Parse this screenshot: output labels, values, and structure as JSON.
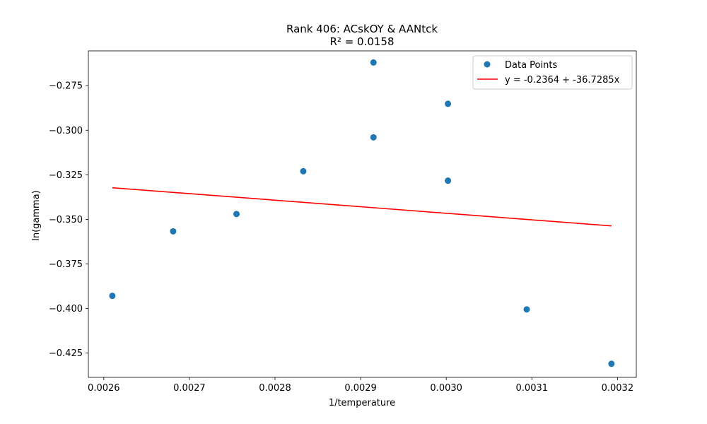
{
  "chart_data": {
    "type": "scatter",
    "title": "Rank 406: ACskOY & AANtck",
    "subtitle": "R² = 0.0158",
    "xlabel": "1/temperature",
    "ylabel": "ln(gamma)",
    "xlim": [
      0.002582,
      0.003222
    ],
    "ylim": [
      -0.43862,
      -0.2555
    ],
    "xticks": [
      0.0026,
      0.0027,
      0.0028,
      0.0029,
      0.003,
      0.0031,
      0.0032
    ],
    "xtick_labels": [
      "0.0026",
      "0.0027",
      "0.0028",
      "0.0029",
      "0.0030",
      "0.0031",
      "0.0032"
    ],
    "yticks": [
      -0.425,
      -0.4,
      -0.375,
      -0.35,
      -0.325,
      -0.3,
      -0.275
    ],
    "ytick_labels": [
      "−0.425",
      "−0.400",
      "−0.375",
      "−0.350",
      "−0.325",
      "−0.300",
      "−0.275"
    ],
    "grid": false,
    "legend_position": "top-right",
    "series": [
      {
        "name": "Data Points",
        "kind": "scatter",
        "color": "#1f77b4",
        "points": [
          {
            "x": 0.00261,
            "y": -0.3929
          },
          {
            "x": 0.002681,
            "y": -0.3567
          },
          {
            "x": 0.002755,
            "y": -0.347
          },
          {
            "x": 0.002833,
            "y": -0.323
          },
          {
            "x": 0.002915,
            "y": -0.262
          },
          {
            "x": 0.002915,
            "y": -0.304
          },
          {
            "x": 0.003002,
            "y": -0.2852
          },
          {
            "x": 0.003002,
            "y": -0.3283
          },
          {
            "x": 0.003094,
            "y": -0.4005
          },
          {
            "x": 0.003193,
            "y": -0.431
          }
        ]
      },
      {
        "name": "y = -0.2364 + -36.7285x",
        "kind": "line",
        "color": "#ff0000",
        "intercept": -0.2364,
        "slope": -36.7285,
        "x_range": [
          0.00261,
          0.003193
        ]
      }
    ]
  }
}
